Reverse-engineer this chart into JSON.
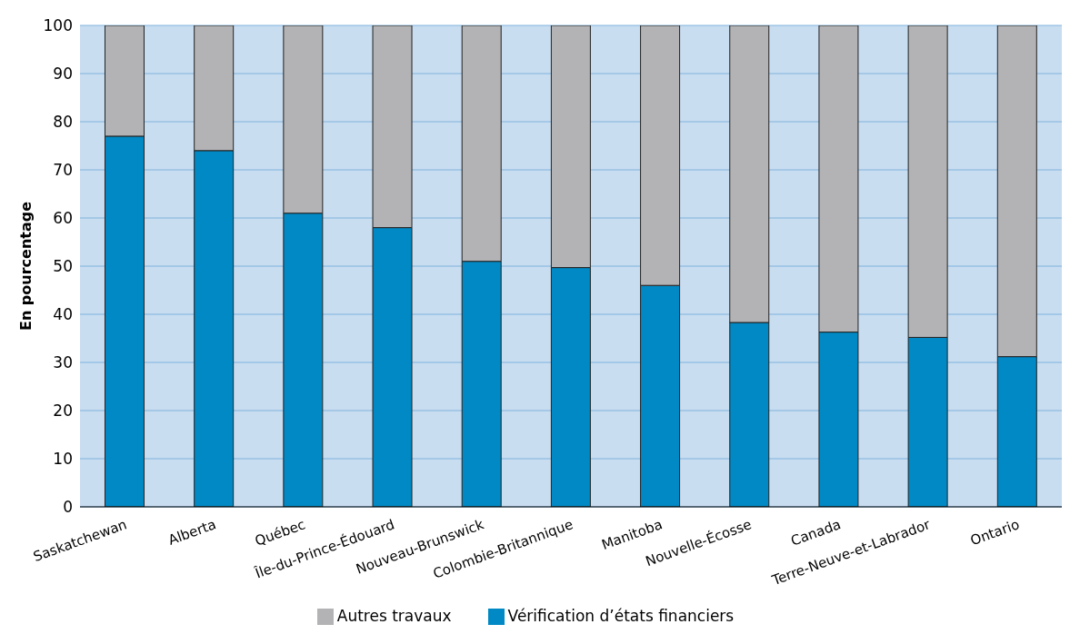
{
  "chart_data": {
    "type": "bar",
    "stacked": true,
    "ylabel": "En pourcentage",
    "categories": [
      "Saskatchewan",
      "Alberta",
      "Québec",
      "Île-du-Prince-Édouard",
      "Nouveau-Brunswick",
      "Colombie-Britannique",
      "Manitoba",
      "Nouvelle-Écosse",
      "Canada",
      "Terre-Neuve-et-Labrador",
      "Ontario"
    ],
    "series": [
      {
        "name": "Vérification d’états financiers",
        "color": "#0089c4",
        "values": [
          77,
          74,
          61,
          58,
          51,
          49.7,
          46,
          38.3,
          36.3,
          35.2,
          31.2
        ]
      },
      {
        "name": "Autres travaux",
        "color": "#b3b3b5",
        "values": [
          23,
          26,
          39,
          42,
          49,
          50.3,
          54,
          61.7,
          63.7,
          64.8,
          68.8
        ]
      }
    ],
    "ylim": [
      0,
      100
    ],
    "yticks": [
      0,
      10,
      20,
      30,
      40,
      50,
      60,
      70,
      80,
      90,
      100
    ],
    "grid": "y",
    "legend": "bottom"
  }
}
